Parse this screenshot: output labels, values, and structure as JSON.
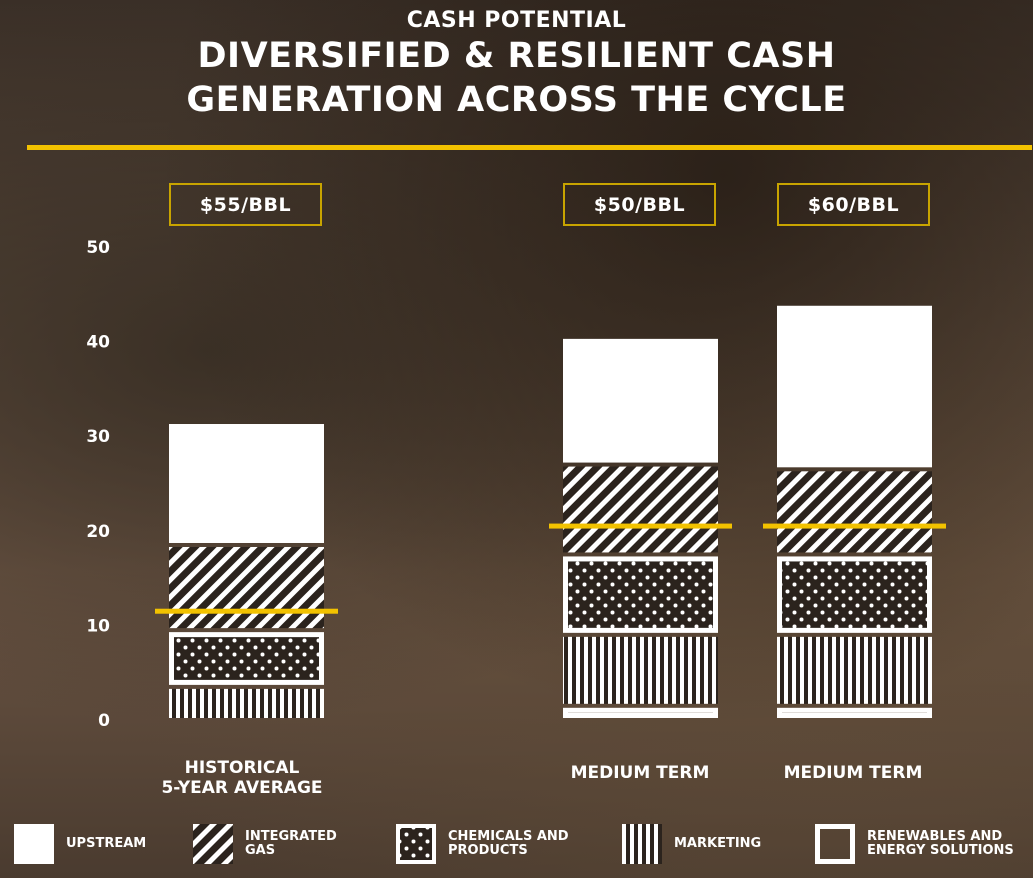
{
  "supertitle": "CASH POTENTIAL",
  "title_line1": "DIVERSIFIED & RESILIENT CASH",
  "title_line2": "GENERATION ACROSS THE CYCLE",
  "accent_color": "#f2c200",
  "price_labels": [
    "$55/BBL",
    "$50/BBL",
    "$60/BBL"
  ],
  "category_labels": [
    {
      "line1": "HISTORICAL",
      "line2": "5-YEAR AVERAGE"
    },
    {
      "line1": "MEDIUM TERM",
      "line2": ""
    },
    {
      "line1": "MEDIUM TERM",
      "line2": ""
    }
  ],
  "legend": [
    {
      "label": "UPSTREAM",
      "icon": "solid-square-icon"
    },
    {
      "label": "INTEGRATED\nGAS",
      "icon": "diagonal-hatch-icon"
    },
    {
      "label": "CHEMICALS AND\nPRODUCTS",
      "icon": "dotted-square-icon"
    },
    {
      "label": "MARKETING",
      "icon": "vertical-stripes-icon"
    },
    {
      "label": "RENEWABLES AND\nENERGY SOLUTIONS",
      "icon": "outlined-square-icon"
    }
  ],
  "chart_data": {
    "type": "bar",
    "stacked": true,
    "categories": [
      "HISTORICAL 5-YEAR AVERAGE",
      "MEDIUM TERM",
      "MEDIUM TERM"
    ],
    "yticks": [
      0,
      10,
      20,
      30,
      40,
      50
    ],
    "ylim": [
      0,
      50
    ],
    "series": [
      {
        "name": "RENEWABLES AND ENERGY SOLUTIONS",
        "values": [
          0,
          1.5,
          1.5
        ]
      },
      {
        "name": "MARKETING",
        "values": [
          3.5,
          7.5,
          7.5
        ]
      },
      {
        "name": "CHEMICALS AND PRODUCTS",
        "values": [
          6,
          8.5,
          8.5
        ]
      },
      {
        "name": "INTEGRATED GAS",
        "values": [
          9,
          9.5,
          9
        ]
      },
      {
        "name": "UPSTREAM",
        "values": [
          13,
          13.5,
          17.5
        ]
      }
    ],
    "threshold_lines": [
      11.5,
      20.5,
      20.5
    ]
  }
}
